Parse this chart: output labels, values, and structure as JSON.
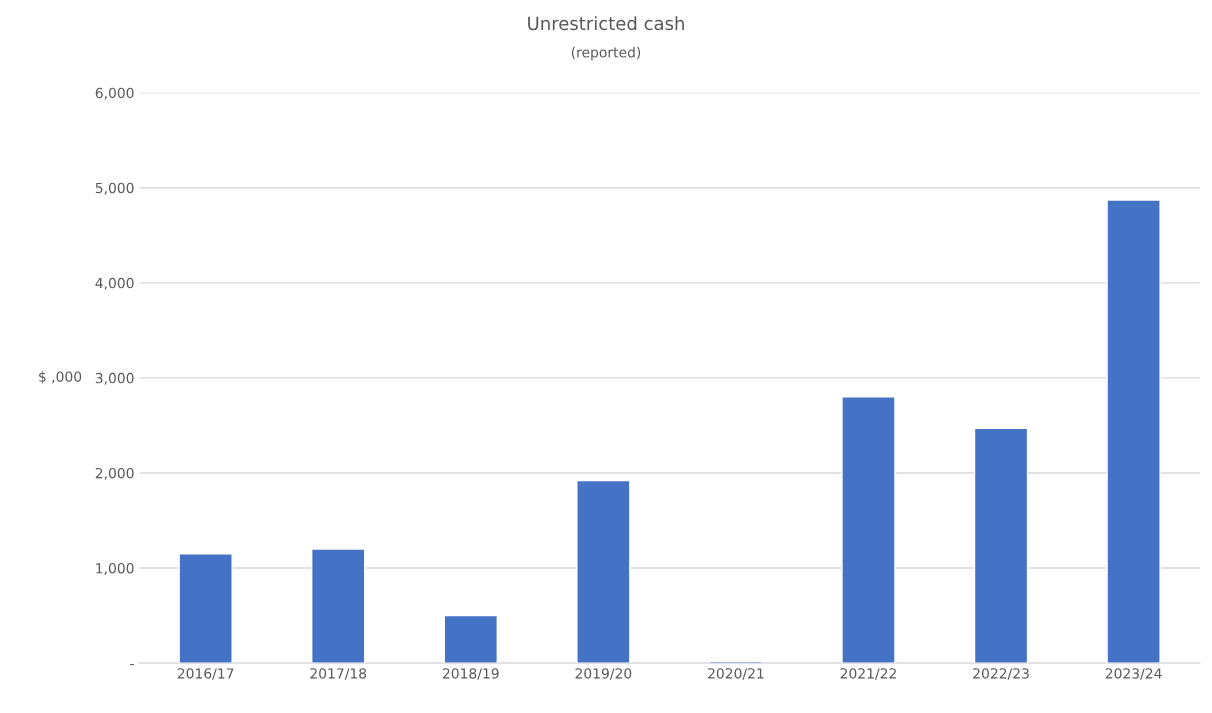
{
  "chart_data": {
    "type": "bar",
    "title": "Unrestricted cash",
    "subtitle": "(reported)",
    "ylabel": "$ ,000",
    "categories": [
      "2016/17",
      "2017/18",
      "2018/19",
      "2019/20",
      "2020/21",
      "2021/22",
      "2022/23",
      "2023/24"
    ],
    "values": [
      1150,
      1200,
      500,
      1920,
      20,
      2800,
      2470,
      4870
    ],
    "color": "#4472c4",
    "ylim": [
      0,
      6000
    ],
    "yticks": [
      {
        "value": 0,
        "label": "-"
      },
      {
        "value": 1000,
        "label": "1,000"
      },
      {
        "value": 2000,
        "label": "2,000"
      },
      {
        "value": 3000,
        "label": "3,000"
      },
      {
        "value": 4000,
        "label": "4,000"
      },
      {
        "value": 5000,
        "label": "5,000"
      },
      {
        "value": 6000,
        "label": "6,000"
      }
    ],
    "grid": "y"
  }
}
